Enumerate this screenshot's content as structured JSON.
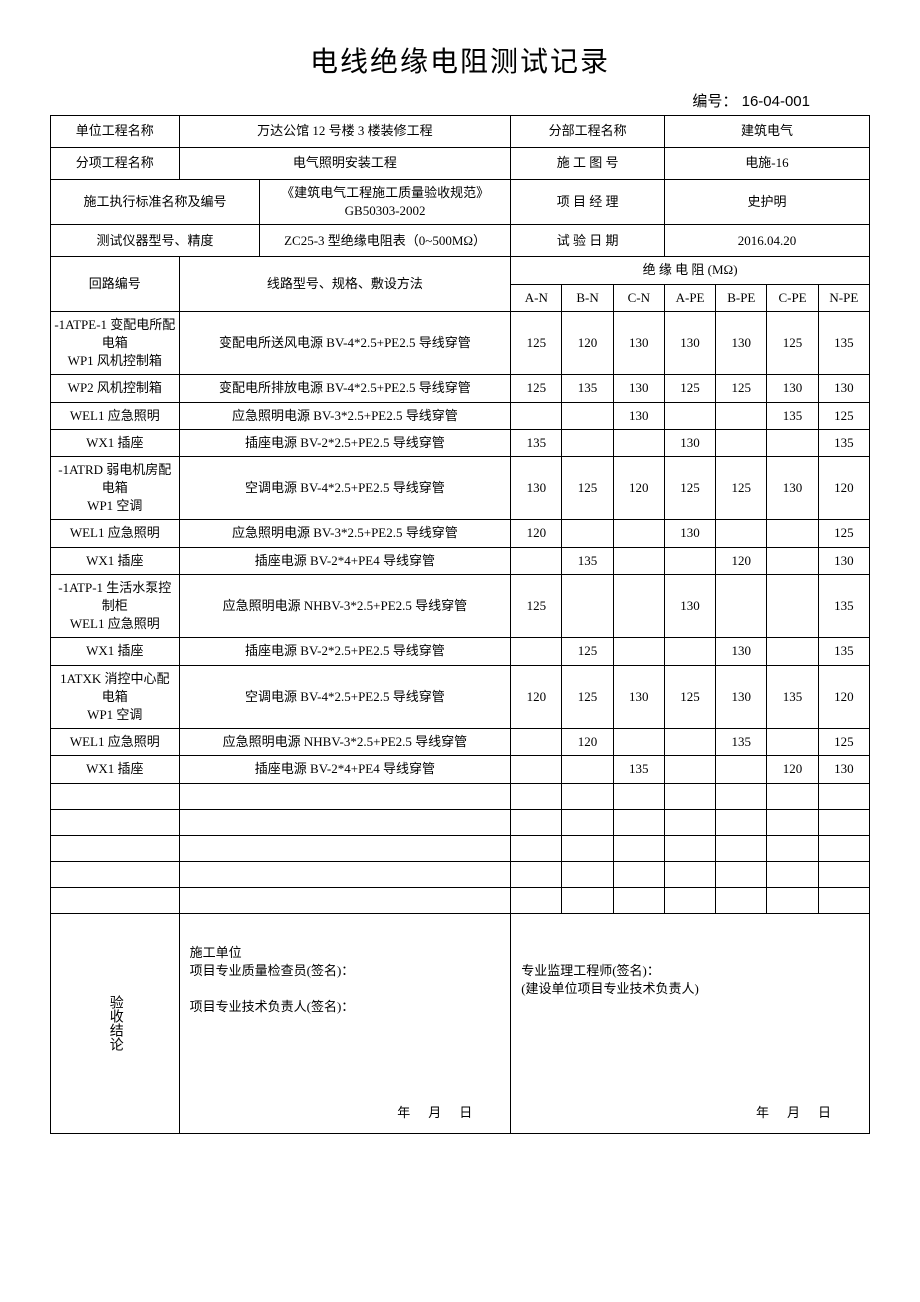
{
  "title": "电线绝缘电阻测试记录",
  "doc_number_label": "编号：",
  "doc_number": "16-04-001",
  "header": {
    "unit_project_label": "单位工程名称",
    "unit_project": "万达公馆 12 号楼 3 楼装修工程",
    "sub_project_label": "分部工程名称",
    "sub_project": "建筑电气",
    "item_project_label": "分项工程名称",
    "item_project": "电气照明安装工程",
    "drawing_no_label": "施 工 图 号",
    "drawing_no": "电施-16",
    "standard_label": "施工执行标准名称及编号",
    "standard": "《建筑电气工程施工质量验收规范》GB50303-2002",
    "pm_label": "项 目 经 理",
    "pm": "史护明",
    "instrument_label": "测试仪器型号、精度",
    "instrument": "ZC25-3 型绝缘电阻表（0~500MΩ）",
    "test_date_label": "试 验 日 期",
    "test_date": "2016.04.20"
  },
  "columns": {
    "circuit_no": "回路编号",
    "line_spec": "线路型号、规格、敷设方法",
    "res_header": "绝    缘    电    阻    (MΩ)",
    "an": "A-N",
    "bn": "B-N",
    "cn": "C-N",
    "ape": "A-PE",
    "bpe": "B-PE",
    "cpe": "C-PE",
    "npe": "N-PE"
  },
  "rows": [
    {
      "circuit": "-1ATPE-1 变配电所配电箱\nWP1 风机控制箱",
      "spec": "变配电所送风电源 BV-4*2.5+PE2.5 导线穿管",
      "v": [
        "125",
        "120",
        "130",
        "130",
        "130",
        "125",
        "135"
      ],
      "tall": true
    },
    {
      "circuit": "WP2 风机控制箱",
      "spec": "变配电所排放电源 BV-4*2.5+PE2.5 导线穿管",
      "v": [
        "125",
        "135",
        "130",
        "125",
        "125",
        "130",
        "130"
      ]
    },
    {
      "circuit": "WEL1 应急照明",
      "spec": "应急照明电源 BV-3*2.5+PE2.5 导线穿管",
      "v": [
        "",
        "",
        "130",
        "",
        "",
        "135",
        "125"
      ]
    },
    {
      "circuit": "WX1 插座",
      "spec": "插座电源 BV-2*2.5+PE2.5 导线穿管",
      "v": [
        "135",
        "",
        "",
        "130",
        "",
        "",
        "135"
      ]
    },
    {
      "circuit": "-1ATRD 弱电机房配电箱\nWP1 空调",
      "spec": "空调电源 BV-4*2.5+PE2.5 导线穿管",
      "v": [
        "130",
        "125",
        "120",
        "125",
        "125",
        "130",
        "120"
      ],
      "tall": true
    },
    {
      "circuit": "WEL1 应急照明",
      "spec": "应急照明电源 BV-3*2.5+PE2.5 导线穿管",
      "v": [
        "120",
        "",
        "",
        "130",
        "",
        "",
        "125"
      ]
    },
    {
      "circuit": "WX1 插座",
      "spec": "插座电源 BV-2*4+PE4 导线穿管",
      "v": [
        "",
        "135",
        "",
        "",
        "120",
        "",
        "130"
      ]
    },
    {
      "circuit": "-1ATP-1 生活水泵控制柜\nWEL1 应急照明",
      "spec": "应急照明电源 NHBV-3*2.5+PE2.5 导线穿管",
      "v": [
        "125",
        "",
        "",
        "130",
        "",
        "",
        "135"
      ],
      "tall": true
    },
    {
      "circuit": "WX1 插座",
      "spec": "插座电源 BV-2*2.5+PE2.5 导线穿管",
      "v": [
        "",
        "125",
        "",
        "",
        "130",
        "",
        "135"
      ]
    },
    {
      "circuit": "1ATXK 消控中心配电箱\nWP1 空调",
      "spec": "空调电源 BV-4*2.5+PE2.5 导线穿管",
      "v": [
        "120",
        "125",
        "130",
        "125",
        "130",
        "135",
        "120"
      ],
      "tall": true
    },
    {
      "circuit": "WEL1 应急照明",
      "spec": "应急照明电源 NHBV-3*2.5+PE2.5 导线穿管",
      "v": [
        "",
        "120",
        "",
        "",
        "135",
        "",
        "125"
      ]
    },
    {
      "circuit": "WX1 插座",
      "spec": "插座电源 BV-2*4+PE4 导线穿管",
      "v": [
        "",
        "",
        "135",
        "",
        "",
        "120",
        "130"
      ]
    }
  ],
  "empty_rows": 5,
  "signoff": {
    "vert_label": "验收结论",
    "left_line1": "施工单位",
    "left_line2": "项目专业质量检查员(签名)：",
    "left_line3": "项目专业技术负责人(签名)：",
    "right_line1": "专业监理工程师(签名)：",
    "right_line2": "(建设单位项目专业技术负责人)",
    "date_text": "年月日"
  }
}
